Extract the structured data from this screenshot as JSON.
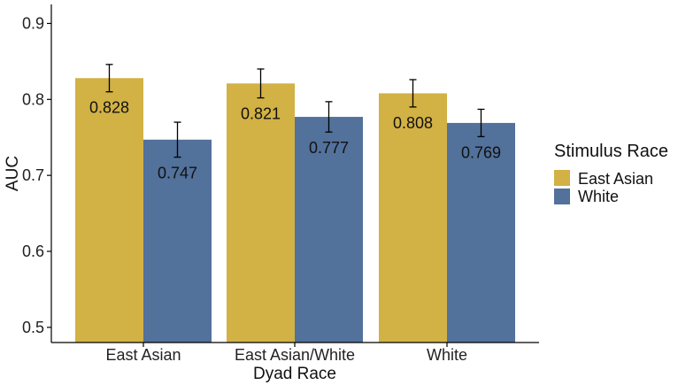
{
  "chart_data": {
    "type": "bar",
    "title": "",
    "xlabel": "Dyad Race",
    "ylabel": "AUC",
    "categories": [
      "East Asian",
      "East Asian/White",
      "White"
    ],
    "ylim": [
      0.48,
      0.925
    ],
    "yticks": [
      0.5,
      0.6,
      0.7,
      0.8,
      0.9
    ],
    "ytick_labels": [
      "0.5",
      "0.6",
      "0.7",
      "0.8",
      "0.9"
    ],
    "grid": false,
    "legend": {
      "title": "Stimulus Race",
      "position": "right"
    },
    "series": [
      {
        "name": "East Asian",
        "color": "#D2B145",
        "values": [
          0.828,
          0.821,
          0.808
        ],
        "labels": [
          "0.828",
          "0.821",
          "0.808"
        ],
        "error": [
          0.018,
          0.019,
          0.018
        ]
      },
      {
        "name": "White",
        "color": "#52719B",
        "values": [
          0.747,
          0.777,
          0.769
        ],
        "labels": [
          "0.747",
          "0.777",
          "0.769"
        ],
        "error": [
          0.023,
          0.02,
          0.018
        ]
      }
    ]
  }
}
